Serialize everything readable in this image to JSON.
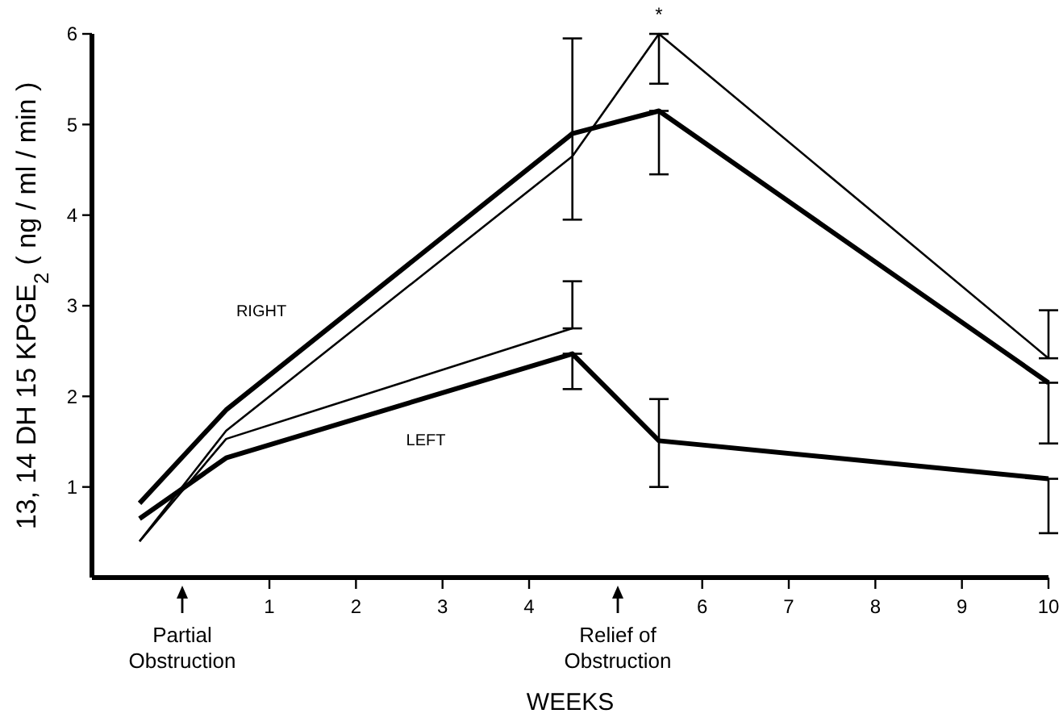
{
  "chart_data": {
    "type": "line",
    "xlabel": "WEEKS",
    "ylabel": "13, 14 DH 15 KPGE$_{2}$  ( ng / ml / min )",
    "xlim": [
      -1.05,
      10
    ],
    "ylim": [
      0,
      6
    ],
    "xticks": [
      1,
      2,
      3,
      4,
      6,
      7,
      8,
      9,
      10
    ],
    "yticks": [
      1,
      2,
      3,
      4,
      5,
      6
    ],
    "grid": false,
    "marker": "none",
    "line_style": "solid",
    "series": [
      {
        "color": "#000000",
        "x": [
          -0.5,
          0.5,
          4.5,
          5.5,
          10
        ],
        "values": [
          0.82,
          1.85,
          4.9,
          5.15,
          2.15
        ],
        "errors": [
          null,
          null,
          [
            3.95,
            5.95
          ],
          [
            4.45,
            5.15
          ],
          [
            1.48,
            2.15
          ]
        ]
      },
      {
        "color": "#000000",
        "x": [
          -0.5,
          0.5,
          4.5,
          5.5,
          10
        ],
        "values": [
          0.4,
          1.62,
          4.65,
          6.0,
          2.42
        ],
        "errors": [
          null,
          null,
          null,
          [
            5.45,
            6.0
          ],
          [
            2.42,
            2.95
          ]
        ]
      },
      {
        "color": "#000000",
        "x": [
          -0.5,
          0.5,
          4.5,
          5.5,
          10
        ],
        "values": [
          0.65,
          1.32,
          2.47,
          1.51,
          1.09
        ],
        "errors": [
          null,
          null,
          [
            2.08,
            2.47
          ],
          [
            1.0,
            1.97
          ],
          [
            0.49,
            1.09
          ]
        ]
      },
      {
        "color": "#000000",
        "x": [
          -0.5,
          0.5,
          4.5
        ],
        "values": [
          0.4,
          1.53,
          2.75
        ],
        "errors": [
          null,
          null,
          [
            2.75,
            3.27
          ]
        ]
      }
    ],
    "annotations": [
      "RIGHT",
      "LEFT",
      {
        "text": "*",
        "x": 5.5,
        "y": 6
      },
      "Partial Obstruction",
      "Relief of Obstruction"
    ]
  }
}
